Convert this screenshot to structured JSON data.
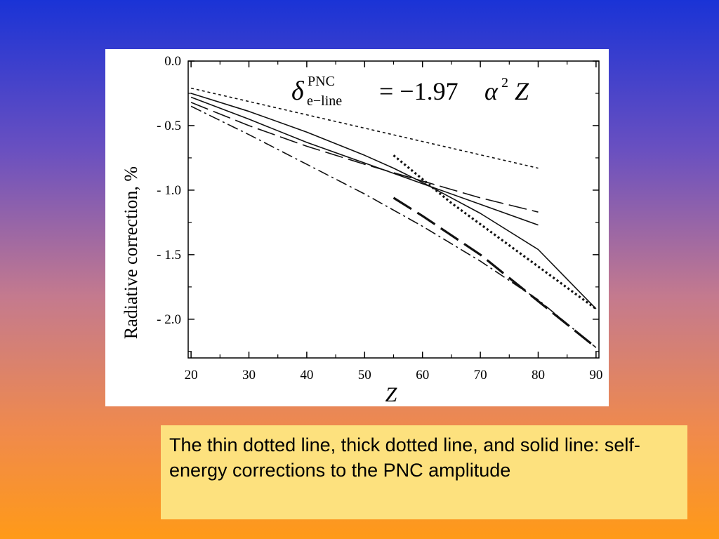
{
  "caption": {
    "text": "The thin dotted line, thick dotted line, and solid line: self-energy corrections to the PNC amplitude"
  },
  "chart_data": {
    "type": "line",
    "title": "",
    "formula": {
      "delta": "δ",
      "superscript": "PNC",
      "subscript": "e−line",
      "rhs_prefix": "= −1.97",
      "alpha": "α",
      "alpha_exp": "2",
      "z": "Z"
    },
    "xlabel": "Z",
    "ylabel": "Radiative correction, %",
    "xlim": [
      19.5,
      90.5
    ],
    "ylim": [
      -2.3,
      0.0
    ],
    "xticks": [
      20,
      30,
      40,
      50,
      60,
      70,
      80,
      90
    ],
    "xtick_labels": [
      "20",
      "30",
      "40",
      "50",
      "60",
      "70",
      "80",
      "90"
    ],
    "yticks": [
      0.0,
      -0.5,
      -1.0,
      -1.5,
      -2.0
    ],
    "ytick_labels": [
      "0.0",
      "- 0.5",
      "- 1.0",
      "- 1.5",
      "- 2.0"
    ],
    "grid": false,
    "series": [
      {
        "style": "thin-dotted",
        "x": [
          20,
          80
        ],
        "y": [
          -0.21,
          -0.83
        ]
      },
      {
        "style": "thick-dotted",
        "x": [
          55,
          65,
          90
        ],
        "y": [
          -0.73,
          -1.1,
          -1.92
        ]
      },
      {
        "style": "solid",
        "x": [
          20,
          30,
          40,
          50,
          55,
          60,
          70,
          80,
          90
        ],
        "y": [
          -0.25,
          -0.39,
          -0.55,
          -0.73,
          -0.83,
          -0.94,
          -1.18,
          -1.46,
          -1.92
        ]
      },
      {
        "style": "thin-solid",
        "x": [
          20,
          30,
          40,
          50,
          60,
          70,
          80
        ],
        "y": [
          -0.28,
          -0.45,
          -0.63,
          -0.79,
          -0.95,
          -1.11,
          -1.27
        ]
      },
      {
        "style": "long-dash",
        "x": [
          20,
          30,
          40,
          50,
          60,
          70,
          80
        ],
        "y": [
          -0.32,
          -0.5,
          -0.66,
          -0.8,
          -0.93,
          -1.06,
          -1.17
        ]
      },
      {
        "style": "thick-long-dash",
        "x": [
          55,
          60,
          70,
          80,
          90
        ],
        "y": [
          -1.06,
          -1.2,
          -1.5,
          -1.86,
          -2.22
        ]
      },
      {
        "style": "dash-dot",
        "x": [
          20,
          30,
          40,
          50,
          60,
          70,
          80,
          90
        ],
        "y": [
          -0.35,
          -0.57,
          -0.8,
          -1.03,
          -1.28,
          -1.55,
          -1.85,
          -2.22
        ]
      }
    ]
  }
}
